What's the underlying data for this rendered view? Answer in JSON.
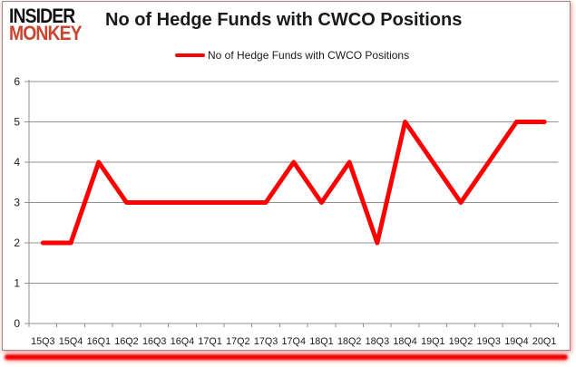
{
  "logo": {
    "line1": "INSIDER",
    "line2": "MONKEY",
    "color_primary": "#111111",
    "color_accent": "#c9452e"
  },
  "header": {
    "title": "No of Hedge Funds with CWCO Positions"
  },
  "legend": {
    "label": "No of Hedge Funds with CWCO Positions",
    "marker_color": "#fe0000"
  },
  "chart_data": {
    "type": "line",
    "title": "No of Hedge Funds with CWCO Positions",
    "categories": [
      "15Q3",
      "15Q4",
      "16Q1",
      "16Q2",
      "16Q3",
      "16Q4",
      "17Q1",
      "17Q2",
      "17Q3",
      "17Q4",
      "18Q1",
      "18Q2",
      "18Q3",
      "18Q4",
      "19Q1",
      "19Q2",
      "19Q3",
      "19Q4",
      "20Q1"
    ],
    "series": [
      {
        "name": "No of Hedge Funds with CWCO Positions",
        "values": [
          2,
          2,
          4,
          3,
          3,
          3,
          3,
          3,
          3,
          4,
          3,
          4,
          2,
          5,
          4,
          3,
          4,
          5,
          5
        ],
        "color": "#fe0000"
      }
    ],
    "xlabel": "",
    "ylabel": "",
    "ylim": [
      0,
      6
    ],
    "yticks": [
      0,
      1,
      2,
      3,
      4,
      5,
      6
    ],
    "grid": true,
    "gridline_color": "#8f8f8f",
    "legend_position": "top",
    "tick_label_color": "#1a1a1a"
  }
}
